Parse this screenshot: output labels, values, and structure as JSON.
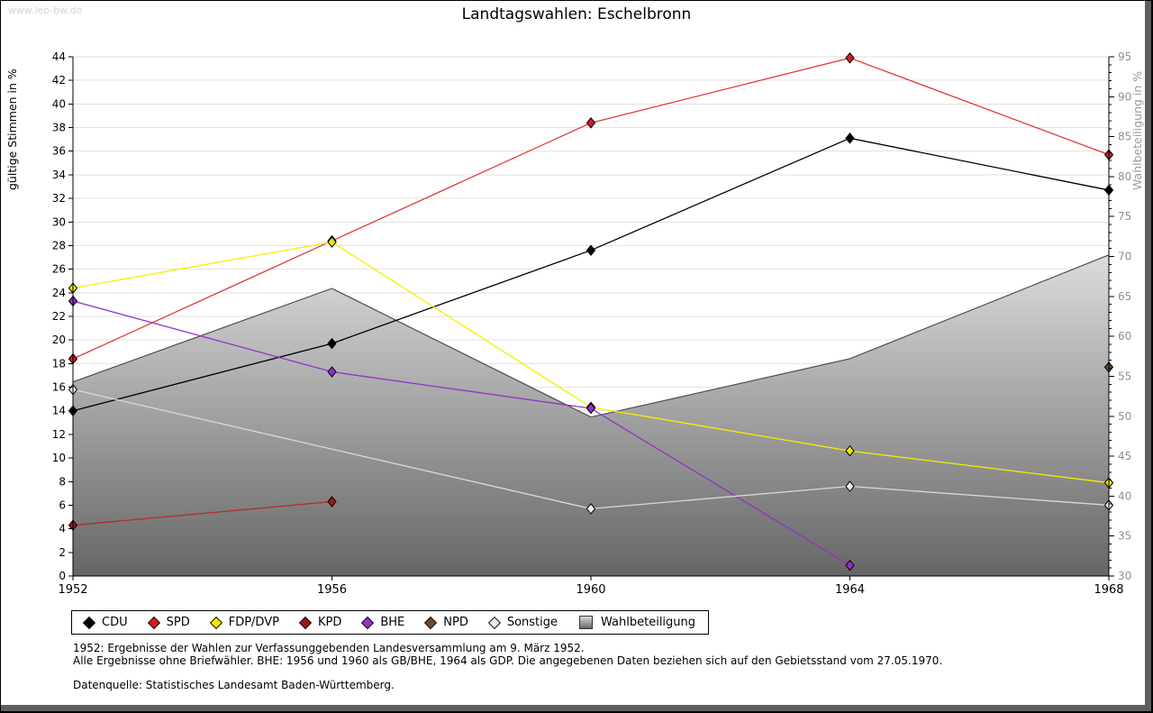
{
  "page": {
    "watermark": "www.leo-bw.de",
    "title": "Landtagswahlen: Eschelbronn"
  },
  "chart_data": {
    "type": "line",
    "x": [
      1952,
      1956,
      1960,
      1964,
      1968
    ],
    "left_axis": {
      "label": "gültige Stimmen in %",
      "min": 0,
      "max": 44,
      "tick_step": 2
    },
    "right_axis": {
      "label": "Wahlbeteiligung in %",
      "min": 30,
      "max": 95,
      "tick_step": 5,
      "minor_step": 1
    },
    "grid": true,
    "legend_position": "bottom",
    "series": [
      {
        "name": "CDU",
        "color": "#000000",
        "line": "#000000",
        "values": [
          14.0,
          19.7,
          27.6,
          37.1,
          32.7
        ]
      },
      {
        "name": "SPD",
        "color": "#d01f1f",
        "line": "#e03c3c",
        "values": [
          18.4,
          28.4,
          38.4,
          43.9,
          35.7
        ]
      },
      {
        "name": "FDP/DVP",
        "color": "#f0e60a",
        "line": "#f4f000",
        "values": [
          24.4,
          28.3,
          14.3,
          10.6,
          7.9
        ]
      },
      {
        "name": "KPD",
        "color": "#a31515",
        "line": "#b52a2a",
        "values": [
          4.3,
          6.3,
          null,
          null,
          null
        ]
      },
      {
        "name": "BHE",
        "color": "#9331c8",
        "line": "#9331c8",
        "values": [
          23.3,
          17.3,
          14.2,
          0.9,
          null
        ]
      },
      {
        "name": "NPD",
        "color": "#6e4a2f",
        "line": "#6e4a2f",
        "values": [
          null,
          null,
          null,
          null,
          17.7
        ]
      },
      {
        "name": "Sonstige",
        "color": "#ececec",
        "line": "#d9d9d9",
        "values": [
          15.8,
          null,
          5.7,
          7.6,
          6.0
        ]
      }
    ],
    "area_series": {
      "name": "Wahlbeteiligung",
      "axis": "right",
      "values": [
        54.3,
        66.0,
        49.9,
        57.2,
        70.2
      ],
      "fill_top": "#dcdcdc",
      "fill_bottom": "#666666",
      "stroke": "#4d4d4d"
    }
  },
  "footer": {
    "line1": "1952: Ergebnisse der Wahlen zur Verfassunggebenden Landesversammlung am 9. März 1952.",
    "line2": "Alle Ergebnisse ohne Briefwähler. BHE: 1956 und 1960 als GB/BHE, 1964 als GDP. Die angegebenen Daten beziehen sich auf den Gebietsstand vom 27.05.1970.",
    "line3": "Datenquelle: Statistisches Landesamt Baden-Württemberg."
  }
}
